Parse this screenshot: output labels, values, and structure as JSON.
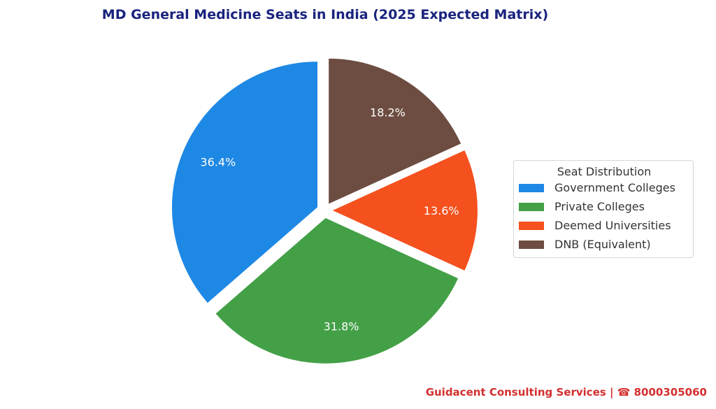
{
  "chart_data": {
    "type": "pie",
    "title": "MD General Medicine Seats in India (2025 Expected Matrix)",
    "categories": [
      "Government Colleges",
      "Private Colleges",
      "Deemed Universities",
      "DNB (Equivalent)"
    ],
    "values": [
      36.4,
      31.8,
      13.6,
      18.2
    ],
    "labels": [
      "36.4%",
      "31.8%",
      "13.6%",
      "18.2%"
    ],
    "colors": [
      "#1e88e5",
      "#43a047",
      "#f4511e",
      "#6d4c41"
    ],
    "start_angle_deg": 90,
    "direction": "counterclockwise",
    "explode": [
      0.05,
      0.05,
      0.05,
      0.05
    ],
    "legend": {
      "title": "Seat Distribution",
      "placement": "center-right"
    }
  },
  "footer": {
    "text": "Guidacent Consulting Services | ☎ 8000305060"
  }
}
